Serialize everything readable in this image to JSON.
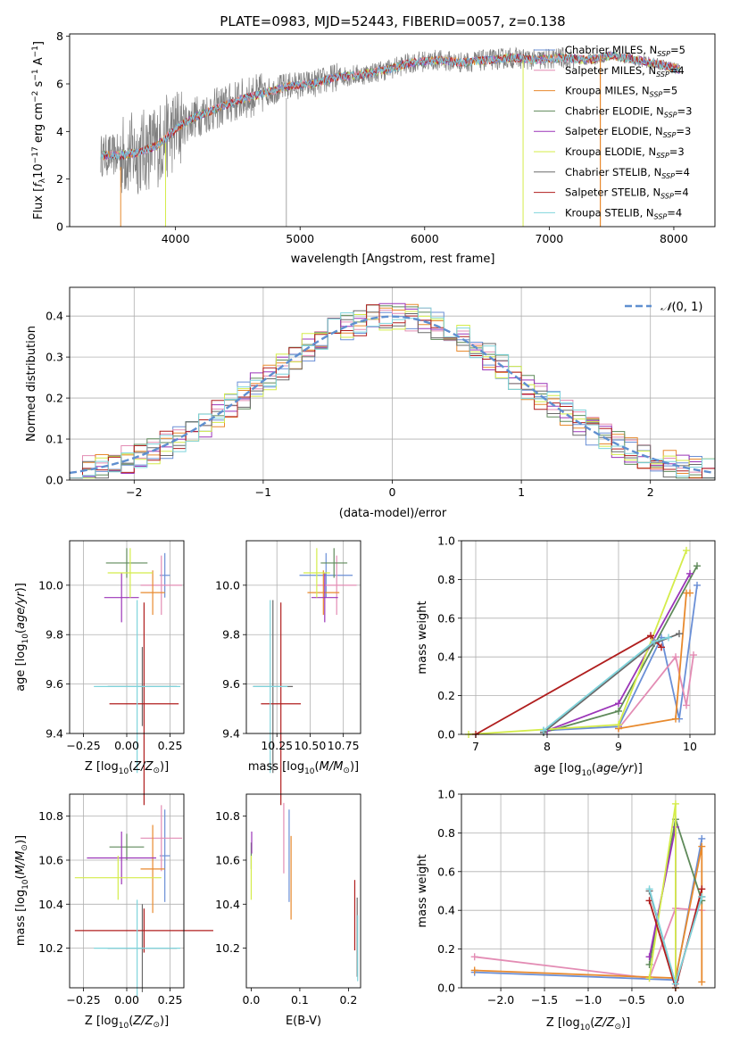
{
  "page_title": "PLATE=0983, MJD=52443, FIBERID=0057, z=0.138",
  "colors": {
    "Chabrier MILES": "#6a8fd6",
    "Salpeter MILES": "#e38cb4",
    "Kroupa MILES": "#e88a2e",
    "Chabrier ELODIE": "#5f8a5a",
    "Salpeter ELODIE": "#9b35b8",
    "Kroupa ELODIE": "#d4ec4a",
    "Chabrier STELIB": "#6a6a6a",
    "Salpeter STELIB": "#b01e1e",
    "Kroupa STELIB": "#7fd4dc"
  },
  "chart_data": [
    {
      "id": "spectrum",
      "type": "line",
      "title": "PLATE=0983, MJD=52443, FIBERID=0057, z=0.138",
      "xlabel": "wavelength [Angstrom, rest frame]",
      "ylabel": "Flux [fλ10⁻¹⁷ erg cm⁻² s⁻¹ A⁻¹]",
      "xlim": [
        3150,
        8330
      ],
      "ylim": [
        0,
        8.1
      ],
      "xticks": [
        "4000",
        "5000",
        "6000",
        "7000",
        "8000"
      ],
      "yticks": [
        "0",
        "2",
        "4",
        "6",
        "8"
      ],
      "legend_position": "top-right",
      "legend": [
        {
          "label": "Chabrier MILES, N_SSP=5",
          "name": "Chabrier MILES"
        },
        {
          "label": "Salpeter MILES, N_SSP=4",
          "name": "Salpeter MILES"
        },
        {
          "label": "Kroupa MILES, N_SSP=5",
          "name": "Kroupa MILES"
        },
        {
          "label": "Chabrier ELODIE, N_SSP=3",
          "name": "Chabrier ELODIE"
        },
        {
          "label": "Salpeter ELODIE, N_SSP=3",
          "name": "Salpeter ELODIE"
        },
        {
          "label": "Kroupa ELODIE, N_SSP=3",
          "name": "Kroupa ELODIE"
        },
        {
          "label": "Chabrier STELIB, N_SSP=4",
          "name": "Chabrier STELIB"
        },
        {
          "label": "Salpeter STELIB, N_SSP=4",
          "name": "Salpeter STELIB"
        },
        {
          "label": "Kroupa STELIB, N_SSP=4",
          "name": "Kroupa STELIB"
        }
      ],
      "continuum": {
        "x": [
          3400,
          3550,
          3700,
          3850,
          4000,
          4150,
          4300,
          4500,
          4700,
          4900,
          5100,
          5300,
          5500,
          5700,
          5900,
          6100,
          6300,
          6500,
          6700,
          6900,
          7100,
          7300,
          7500,
          7700,
          7900,
          8050
        ],
        "y": [
          3.0,
          3.0,
          3.1,
          3.4,
          4.1,
          4.6,
          4.9,
          5.3,
          5.6,
          5.9,
          6.0,
          6.3,
          6.4,
          6.6,
          6.9,
          7.0,
          6.9,
          7.0,
          7.1,
          7.0,
          7.1,
          7.0,
          7.2,
          7.0,
          6.8,
          6.6
        ]
      }
    },
    {
      "id": "residuals",
      "type": "line",
      "xlabel": "(data-model)/error",
      "ylabel": "Normed distribution",
      "xlim": [
        -2.5,
        2.5
      ],
      "ylim": [
        0,
        0.47
      ],
      "xticks": [
        "−2",
        "−1",
        "0",
        "1",
        "2"
      ],
      "yticks": [
        "0.0",
        "0.1",
        "0.2",
        "0.3",
        "0.4"
      ],
      "grid": true,
      "legend_position": "top-right",
      "gaussian_label": "N(0, 1)"
    },
    {
      "id": "age_vs_Z",
      "type": "scatter",
      "xlabel": "Z [log10(Z/Z⊙)]",
      "ylabel": "age  [log10(age/yr)]",
      "xlim": [
        -0.33,
        0.33
      ],
      "ylim": [
        9.4,
        10.18
      ],
      "xticks": [
        "−0.25",
        "0.00",
        "0.25"
      ],
      "yticks": [
        "9.4",
        "9.6",
        "9.8",
        "10.0"
      ],
      "grid": true,
      "points": [
        {
          "s": "Chabrier MILES",
          "x": 0.22,
          "xe": 0.03,
          "y": 10.04,
          "ye": 0.09
        },
        {
          "s": "Salpeter MILES",
          "x": 0.2,
          "xe": 0.12,
          "y": 10.0,
          "ye": 0.12
        },
        {
          "s": "Kroupa MILES",
          "x": 0.15,
          "xe": 0.07,
          "y": 9.97,
          "ye": 0.09
        },
        {
          "s": "Chabrier ELODIE",
          "x": 0.0,
          "xe": 0.12,
          "y": 10.09,
          "ye": 0.06
        },
        {
          "s": "Salpeter ELODIE",
          "x": -0.03,
          "xe": 0.1,
          "y": 9.95,
          "ye": 0.1
        },
        {
          "s": "Kroupa ELODIE",
          "x": 0.02,
          "xe": 0.13,
          "y": 10.05,
          "ye": 0.1
        },
        {
          "s": "Chabrier STELIB",
          "x": 0.09,
          "xe": 0.2,
          "y": 9.59,
          "ye": 0.16
        },
        {
          "s": "Salpeter STELIB",
          "x": 0.1,
          "xe": 0.2,
          "y": 9.52,
          "ye": 0.41
        },
        {
          "s": "Kroupa STELIB",
          "x": 0.06,
          "xe": 0.25,
          "y": 9.59,
          "ye": 0.35
        }
      ]
    },
    {
      "id": "age_vs_mass",
      "type": "scatter",
      "xlabel": "mass [log10(M/M⊙)]",
      "xlim": [
        10.02,
        10.88
      ],
      "ylim": [
        9.4,
        10.18
      ],
      "xticks": [
        "10.25",
        "10.50",
        "10.75"
      ],
      "yticks": [
        "9.4",
        "9.6",
        "9.8",
        "10.0"
      ],
      "grid": true,
      "points": [
        {
          "s": "Chabrier MILES",
          "x": 10.62,
          "xe": 0.2,
          "y": 10.04,
          "ye": 0.09
        },
        {
          "s": "Salpeter MILES",
          "x": 10.7,
          "xe": 0.15,
          "y": 10.0,
          "ye": 0.12
        },
        {
          "s": "Kroupa MILES",
          "x": 10.6,
          "xe": 0.12,
          "y": 9.97,
          "ye": 0.09
        },
        {
          "s": "Chabrier ELODIE",
          "x": 10.68,
          "xe": 0.1,
          "y": 10.09,
          "ye": 0.06
        },
        {
          "s": "Salpeter ELODIE",
          "x": 10.61,
          "xe": 0.1,
          "y": 9.95,
          "ye": 0.1
        },
        {
          "s": "Kroupa ELODIE",
          "x": 10.55,
          "xe": 0.1,
          "y": 10.05,
          "ye": 0.1
        },
        {
          "s": "Chabrier STELIB",
          "x": 10.22,
          "xe": 0.15,
          "y": 9.59,
          "ye": 0.35
        },
        {
          "s": "Salpeter STELIB",
          "x": 10.28,
          "xe": 0.15,
          "y": 9.52,
          "ye": 0.41
        },
        {
          "s": "Kroupa STELIB",
          "x": 10.2,
          "xe": 0.13,
          "y": 9.59,
          "ye": 0.35
        }
      ]
    },
    {
      "id": "weight_vs_age",
      "type": "line",
      "xlabel": "age  [log10(age/yr)]",
      "ylabel": "mass weight",
      "xlim": [
        6.8,
        10.35
      ],
      "ylim": [
        0,
        1.0
      ],
      "xticks": [
        "7",
        "8",
        "9",
        "10"
      ],
      "yticks": [
        "0.0",
        "0.2",
        "0.4",
        "0.6",
        "0.8",
        "1.0"
      ],
      "grid": true,
      "series": [
        {
          "s": "Chabrier MILES",
          "x": [
            7.95,
            9.0,
            9.6,
            9.85,
            10.1
          ],
          "y": [
            0.02,
            0.04,
            0.5,
            0.08,
            0.77
          ]
        },
        {
          "s": "Salpeter MILES",
          "x": [
            9.0,
            9.8,
            9.95,
            10.05
          ],
          "y": [
            0.03,
            0.4,
            0.15,
            0.41
          ]
        },
        {
          "s": "Kroupa MILES",
          "x": [
            9.0,
            9.8,
            9.95,
            10.0
          ],
          "y": [
            0.03,
            0.08,
            0.73,
            0.73
          ]
        },
        {
          "s": "Chabrier ELODIE",
          "x": [
            7.95,
            9.0,
            10.1
          ],
          "y": [
            0.01,
            0.12,
            0.87
          ]
        },
        {
          "s": "Salpeter ELODIE",
          "x": [
            8.0,
            9.0,
            10.0
          ],
          "y": [
            0.02,
            0.16,
            0.83
          ]
        },
        {
          "s": "Kroupa ELODIE",
          "x": [
            6.9,
            9.0,
            9.95
          ],
          "y": [
            0.0,
            0.05,
            0.95
          ]
        },
        {
          "s": "Chabrier STELIB",
          "x": [
            7.95,
            9.5,
            9.85
          ],
          "y": [
            0.01,
            0.47,
            0.52
          ]
        },
        {
          "s": "Salpeter STELIB",
          "x": [
            7.0,
            9.45,
            9.6
          ],
          "y": [
            0.0,
            0.51,
            0.45
          ]
        },
        {
          "s": "Kroupa STELIB",
          "x": [
            7.95,
            9.5,
            9.7
          ],
          "y": [
            0.02,
            0.48,
            0.5
          ]
        }
      ]
    },
    {
      "id": "mass_vs_Z",
      "type": "scatter",
      "xlabel": "Z [log10(Z/Z⊙)]",
      "ylabel": "mass [log10(M/M⊙)]",
      "xlim": [
        -0.33,
        0.33
      ],
      "ylim": [
        10.02,
        10.9
      ],
      "xticks": [
        "−0.25",
        "0.00",
        "0.25"
      ],
      "yticks": [
        "10.2",
        "10.4",
        "10.6",
        "10.8"
      ],
      "grid": true,
      "points": [
        {
          "s": "Chabrier MILES",
          "x": 0.22,
          "xe": 0.03,
          "y": 10.62,
          "ye": 0.21
        },
        {
          "s": "Salpeter MILES",
          "x": 0.2,
          "xe": 0.12,
          "y": 10.7,
          "ye": 0.15
        },
        {
          "s": "Kroupa MILES",
          "x": 0.15,
          "xe": 0.07,
          "y": 10.56,
          "ye": 0.2
        },
        {
          "s": "Chabrier ELODIE",
          "x": 0.0,
          "xe": 0.1,
          "y": 10.66,
          "ye": 0.06
        },
        {
          "s": "Salpeter ELODIE",
          "x": -0.03,
          "xe": 0.2,
          "y": 10.61,
          "ye": 0.12
        },
        {
          "s": "Kroupa ELODIE",
          "x": -0.05,
          "xe": 0.25,
          "y": 10.52,
          "ye": 0.1
        },
        {
          "s": "Chabrier STELIB",
          "x": 0.09,
          "xe": 0.2,
          "y": 10.2,
          "ye": 0.2
        },
        {
          "s": "Salpeter STELIB",
          "x": 0.1,
          "xe": 0.4,
          "y": 10.28,
          "ye": 0.1
        },
        {
          "s": "Kroupa STELIB",
          "x": 0.06,
          "xe": 0.25,
          "y": 10.2,
          "ye": 0.22
        }
      ]
    },
    {
      "id": "mass_vs_EBV",
      "type": "scatter",
      "xlabel": "E(B-V)",
      "xlim": [
        -0.01,
        0.225
      ],
      "ylim": [
        10.02,
        10.9
      ],
      "xticks": [
        "0.0",
        "0.1",
        "0.2"
      ],
      "yticks": [
        "10.2",
        "10.4",
        "10.6",
        "10.8"
      ],
      "grid": false,
      "points": [
        {
          "s": "Chabrier MILES",
          "x": 0.078,
          "y": 10.62,
          "ye": 0.21
        },
        {
          "s": "Salpeter MILES",
          "x": 0.067,
          "y": 10.7,
          "ye": 0.16
        },
        {
          "s": "Kroupa MILES",
          "x": 0.082,
          "y": 10.52,
          "ye": 0.19
        },
        {
          "s": "Chabrier ELODIE",
          "x": 0.0,
          "y": 10.62,
          "ye": 0.06
        },
        {
          "s": "Salpeter ELODIE",
          "x": 0.001,
          "y": 10.68,
          "ye": 0.05
        },
        {
          "s": "Kroupa ELODIE",
          "x": 0.0,
          "y": 10.52,
          "ye": 0.1
        },
        {
          "s": "Chabrier STELIB",
          "x": 0.218,
          "y": 10.25,
          "ye": 0.18
        },
        {
          "s": "Salpeter STELIB",
          "x": 0.213,
          "y": 10.35,
          "ye": 0.16
        },
        {
          "s": "Kroupa STELIB",
          "x": 0.219,
          "y": 10.2,
          "ye": 0.15
        }
      ]
    },
    {
      "id": "weight_vs_Z",
      "type": "line",
      "xlabel": "Z [log10(Z/Z⊙)]",
      "ylabel": "mass weight",
      "xlim": [
        -2.45,
        0.45
      ],
      "ylim": [
        0,
        1.0
      ],
      "xticks": [
        "−2.0",
        "−1.5",
        "−1.0",
        "−0.5",
        "0.0"
      ],
      "yticks": [
        "0.0",
        "0.2",
        "0.4",
        "0.6",
        "0.8",
        "1.0"
      ],
      "grid": true,
      "series": [
        {
          "s": "Chabrier MILES",
          "x": [
            -2.3,
            0.0,
            0.3
          ],
          "y": [
            0.08,
            0.04,
            0.77
          ]
        },
        {
          "s": "Salpeter MILES",
          "x": [
            -2.3,
            -0.3,
            0.0,
            0.3
          ],
          "y": [
            0.16,
            0.05,
            0.41,
            0.4
          ]
        },
        {
          "s": "Kroupa MILES",
          "x": [
            -2.3,
            0.0,
            0.3,
            0.3
          ],
          "y": [
            0.09,
            0.05,
            0.73,
            0.03
          ]
        },
        {
          "s": "Chabrier ELODIE",
          "x": [
            -0.3,
            0.0,
            0.3
          ],
          "y": [
            0.12,
            0.87,
            0.45
          ]
        },
        {
          "s": "Salpeter ELODIE",
          "x": [
            -0.3,
            0.0,
            0.0
          ],
          "y": [
            0.16,
            0.83,
            0.02
          ]
        },
        {
          "s": "Kroupa ELODIE",
          "x": [
            -0.3,
            0.0,
            0.0
          ],
          "y": [
            0.05,
            0.95,
            0.0
          ]
        },
        {
          "s": "Chabrier STELIB",
          "x": [
            -0.3,
            0.0,
            0.3
          ],
          "y": [
            0.5,
            0.02,
            0.47
          ]
        },
        {
          "s": "Salpeter STELIB",
          "x": [
            -0.3,
            0.0,
            0.3
          ],
          "y": [
            0.45,
            0.0,
            0.51
          ]
        },
        {
          "s": "Kroupa STELIB",
          "x": [
            -0.3,
            0.0,
            0.3
          ],
          "y": [
            0.51,
            0.02,
            0.47
          ]
        }
      ]
    }
  ]
}
